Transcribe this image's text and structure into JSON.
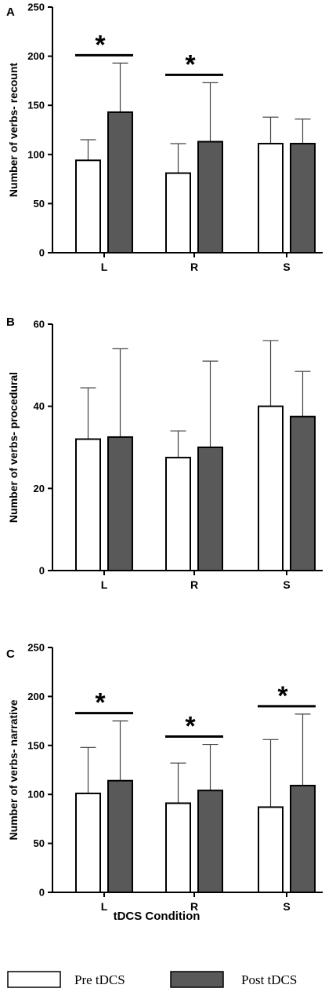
{
  "colors": {
    "pre": "#ffffff",
    "post": "#595959",
    "axis": "#000000",
    "errorbar": "#444444"
  },
  "x_title": "tDCS Condition",
  "legend": {
    "pre": "Pre tDCS",
    "post": "Post tDCS"
  },
  "chart_data": [
    {
      "type": "bar",
      "panel": "A",
      "ylabel": "Number of verbs- recount",
      "categories": [
        "L",
        "R",
        "S"
      ],
      "ylim": [
        0,
        250
      ],
      "yticks": [
        0,
        50,
        100,
        150,
        200,
        250
      ],
      "series": [
        {
          "name": "Pre tDCS",
          "values": [
            94,
            81,
            111
          ],
          "errors": [
            21,
            30,
            27
          ]
        },
        {
          "name": "Post tDCS",
          "values": [
            143,
            113,
            111
          ],
          "errors": [
            50,
            60,
            25
          ]
        }
      ],
      "significance": [
        {
          "category": "L",
          "label": "*"
        },
        {
          "category": "R",
          "label": "*"
        }
      ]
    },
    {
      "type": "bar",
      "panel": "B",
      "ylabel": "Number of verbs- procedural",
      "categories": [
        "L",
        "R",
        "S"
      ],
      "ylim": [
        0,
        60
      ],
      "yticks": [
        0,
        20,
        40,
        60
      ],
      "series": [
        {
          "name": "Pre tDCS",
          "values": [
            32,
            27.5,
            40
          ],
          "errors": [
            12.5,
            6.5,
            16
          ]
        },
        {
          "name": "Post tDCS",
          "values": [
            32.5,
            30,
            37.5
          ],
          "errors": [
            21.5,
            21,
            11
          ]
        }
      ],
      "significance": []
    },
    {
      "type": "bar",
      "panel": "C",
      "ylabel": "Number of verbs- narrative",
      "categories": [
        "L",
        "R",
        "S"
      ],
      "ylim": [
        0,
        250
      ],
      "yticks": [
        0,
        50,
        100,
        150,
        200,
        250
      ],
      "series": [
        {
          "name": "Pre tDCS",
          "values": [
            101,
            91,
            87
          ],
          "errors": [
            47,
            41,
            69
          ]
        },
        {
          "name": "Post tDCS",
          "values": [
            114,
            104,
            109
          ],
          "errors": [
            61,
            47,
            73
          ]
        }
      ],
      "significance": [
        {
          "category": "L",
          "label": "*"
        },
        {
          "category": "R",
          "label": "*"
        },
        {
          "category": "S",
          "label": "*"
        }
      ]
    }
  ]
}
